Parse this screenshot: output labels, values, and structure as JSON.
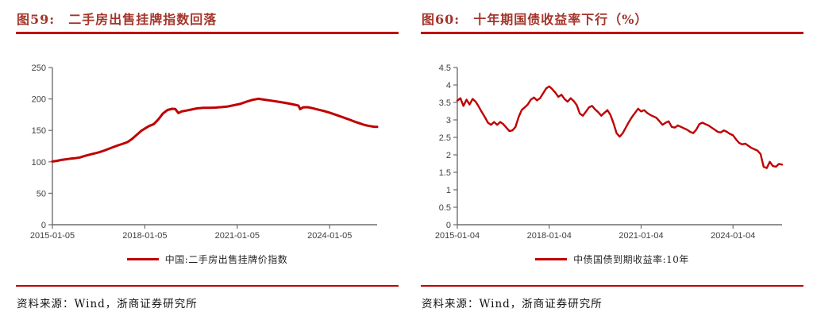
{
  "page": {
    "background": "#ffffff"
  },
  "colors": {
    "title_red": "#A4352B",
    "rule_red": "#C00000",
    "series_red": "#C00000",
    "axis": "#6E6E6E",
    "tick_text": "#404040"
  },
  "panels": [
    {
      "number": "图59:",
      "title": "二手房出售挂牌指数回落",
      "legend": "中国:二手房出售挂牌价指数",
      "source": "资料来源：Wind，浙商证券研究所"
    },
    {
      "number": "图60:",
      "title": "十年期国债收益率下行（%）",
      "legend": "中债国债到期收益率:10年",
      "source": "资料来源：Wind，浙商证券研究所"
    }
  ],
  "chart_data": [
    {
      "type": "line",
      "title": "二手房出售挂牌指数回落",
      "xlabel": "",
      "ylabel": "",
      "grid": false,
      "legend_position": "bottom",
      "x_range": [
        2015.01,
        2025.55
      ],
      "ylim": [
        0,
        250
      ],
      "y_ticks": [
        0,
        50,
        100,
        150,
        200,
        250
      ],
      "x_ticks": [
        {
          "t": 2015.01,
          "label": "2015-01-05"
        },
        {
          "t": 2018.01,
          "label": "2018-01-05"
        },
        {
          "t": 2021.01,
          "label": "2021-01-05"
        },
        {
          "t": 2024.01,
          "label": "2024-01-05"
        }
      ],
      "series": [
        {
          "name": "中国:二手房出售挂牌价指数",
          "color": "#C00000",
          "x": [
            2015.01,
            2015.15,
            2015.3,
            2015.45,
            2015.6,
            2015.75,
            2015.9,
            2016.1,
            2016.3,
            2016.5,
            2016.7,
            2016.9,
            2017.1,
            2017.3,
            2017.45,
            2017.6,
            2017.75,
            2017.9,
            2018.0,
            2018.15,
            2018.3,
            2018.45,
            2018.6,
            2018.75,
            2018.9,
            2019.0,
            2019.1,
            2019.2,
            2019.35,
            2019.5,
            2019.7,
            2019.9,
            2020.1,
            2020.3,
            2020.5,
            2020.7,
            2020.9,
            2021.1,
            2021.3,
            2021.5,
            2021.7,
            2021.9,
            2022.1,
            2022.3,
            2022.5,
            2022.7,
            2022.9,
            2023.0,
            2023.05,
            2023.15,
            2023.3,
            2023.45,
            2023.6,
            2023.8,
            2024.0,
            2024.2,
            2024.4,
            2024.6,
            2024.8,
            2025.0,
            2025.15,
            2025.3,
            2025.45,
            2025.55
          ],
          "values": [
            100.5,
            101.5,
            103,
            104,
            105,
            105.8,
            107,
            110,
            112.5,
            114.8,
            118,
            121.8,
            125.5,
            128.8,
            131.5,
            136.5,
            143,
            149.5,
            152.5,
            157,
            160,
            167.5,
            177,
            182.5,
            184.3,
            184,
            177.5,
            180,
            181.5,
            183,
            185,
            185.8,
            186,
            186.3,
            187,
            188,
            190,
            192,
            195.5,
            198.5,
            200.3,
            198.8,
            197.3,
            195.8,
            194.3,
            192.5,
            190.5,
            189.3,
            183.8,
            186.8,
            186.9,
            185.3,
            183.5,
            181,
            178.3,
            175,
            171.5,
            168,
            164.3,
            160.8,
            158.5,
            157,
            155.8,
            155.5
          ]
        }
      ]
    },
    {
      "type": "line",
      "title": "十年期国债收益率下行（%）",
      "xlabel": "",
      "ylabel": "",
      "grid": false,
      "legend_position": "bottom",
      "x_range": [
        2015.01,
        2025.61
      ],
      "ylim": [
        0,
        4.5
      ],
      "y_ticks": [
        0,
        0.5,
        1,
        1.5,
        2,
        2.5,
        3,
        3.5,
        4,
        4.5
      ],
      "x_ticks": [
        {
          "t": 2015.01,
          "label": "2015-01-04"
        },
        {
          "t": 2018.01,
          "label": "2018-01-04"
        },
        {
          "t": 2021.01,
          "label": "2021-01-04"
        },
        {
          "t": 2024.01,
          "label": "2024-01-04"
        }
      ],
      "series": [
        {
          "name": "中债国债到期收益率:10年",
          "color": "#C00000",
          "x_start": 2015.01,
          "x_step": 0.1,
          "values": [
            3.55,
            3.62,
            3.4,
            3.58,
            3.44,
            3.6,
            3.52,
            3.38,
            3.22,
            3.08,
            2.92,
            2.86,
            2.94,
            2.86,
            2.94,
            2.88,
            2.78,
            2.68,
            2.7,
            2.8,
            3.08,
            3.28,
            3.36,
            3.44,
            3.58,
            3.64,
            3.56,
            3.62,
            3.76,
            3.9,
            3.96,
            3.88,
            3.78,
            3.66,
            3.72,
            3.6,
            3.52,
            3.62,
            3.54,
            3.42,
            3.18,
            3.12,
            3.24,
            3.36,
            3.4,
            3.3,
            3.22,
            3.12,
            3.2,
            3.28,
            3.14,
            2.9,
            2.62,
            2.52,
            2.62,
            2.78,
            2.94,
            3.08,
            3.2,
            3.32,
            3.24,
            3.28,
            3.2,
            3.14,
            3.1,
            3.06,
            2.96,
            2.86,
            2.92,
            2.96,
            2.8,
            2.78,
            2.84,
            2.8,
            2.76,
            2.72,
            2.66,
            2.62,
            2.72,
            2.88,
            2.92,
            2.88,
            2.84,
            2.78,
            2.72,
            2.66,
            2.64,
            2.7,
            2.66,
            2.6,
            2.56,
            2.44,
            2.34,
            2.3,
            2.32,
            2.26,
            2.2,
            2.16,
            2.12,
            2.02,
            1.66,
            1.62,
            1.8,
            1.68,
            1.66,
            1.74,
            1.72
          ]
        }
      ]
    }
  ]
}
